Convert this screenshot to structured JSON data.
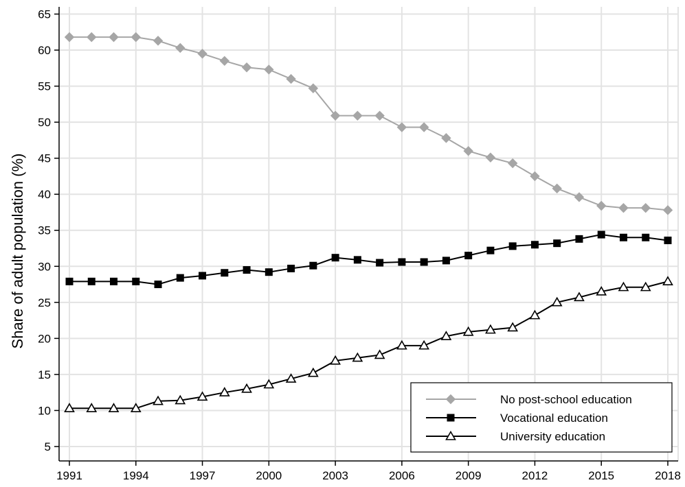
{
  "chart_data": {
    "type": "line",
    "title": "",
    "xlabel": "",
    "ylabel": "Share of adult population (%)",
    "x": [
      1991,
      1992,
      1993,
      1994,
      1995,
      1996,
      1997,
      1998,
      1999,
      2000,
      2001,
      2002,
      2003,
      2004,
      2005,
      2006,
      2007,
      2008,
      2009,
      2010,
      2011,
      2012,
      2013,
      2014,
      2015,
      2016,
      2017,
      2018
    ],
    "xticks": [
      1991,
      1994,
      1997,
      2000,
      2003,
      2006,
      2009,
      2012,
      2015,
      2018
    ],
    "yticks": [
      5,
      10,
      15,
      20,
      25,
      30,
      35,
      40,
      45,
      50,
      55,
      60,
      65
    ],
    "xlim": [
      1991,
      2018
    ],
    "ylim": [
      3,
      66
    ],
    "grid": true,
    "legend_position": "bottom-right",
    "series": [
      {
        "name": "No post-school education",
        "marker": "diamond",
        "color": "#a6a6a6",
        "values": [
          61.8,
          61.8,
          61.8,
          61.8,
          61.3,
          60.3,
          59.5,
          58.5,
          57.6,
          57.3,
          56.0,
          54.7,
          50.9,
          50.9,
          50.9,
          49.3,
          49.3,
          47.8,
          46.0,
          45.1,
          44.3,
          42.5,
          40.8,
          39.6,
          38.4,
          38.1,
          38.1,
          37.8
        ]
      },
      {
        "name": "Vocational education",
        "marker": "square",
        "color": "#000000",
        "values": [
          27.9,
          27.9,
          27.9,
          27.9,
          27.5,
          28.4,
          28.7,
          29.1,
          29.5,
          29.2,
          29.7,
          30.1,
          31.2,
          30.9,
          30.5,
          30.6,
          30.6,
          30.8,
          31.5,
          32.2,
          32.8,
          33.0,
          33.2,
          33.8,
          34.4,
          34.0,
          34.0,
          33.6
        ]
      },
      {
        "name": "University education",
        "marker": "triangle",
        "color": "#000000",
        "values": [
          10.3,
          10.3,
          10.3,
          10.3,
          11.3,
          11.4,
          11.9,
          12.5,
          13.0,
          13.6,
          14.4,
          15.2,
          16.9,
          17.3,
          17.7,
          19.0,
          19.0,
          20.3,
          20.9,
          21.2,
          21.5,
          23.2,
          25.0,
          25.7,
          26.5,
          27.1,
          27.1,
          27.9
        ]
      }
    ]
  }
}
